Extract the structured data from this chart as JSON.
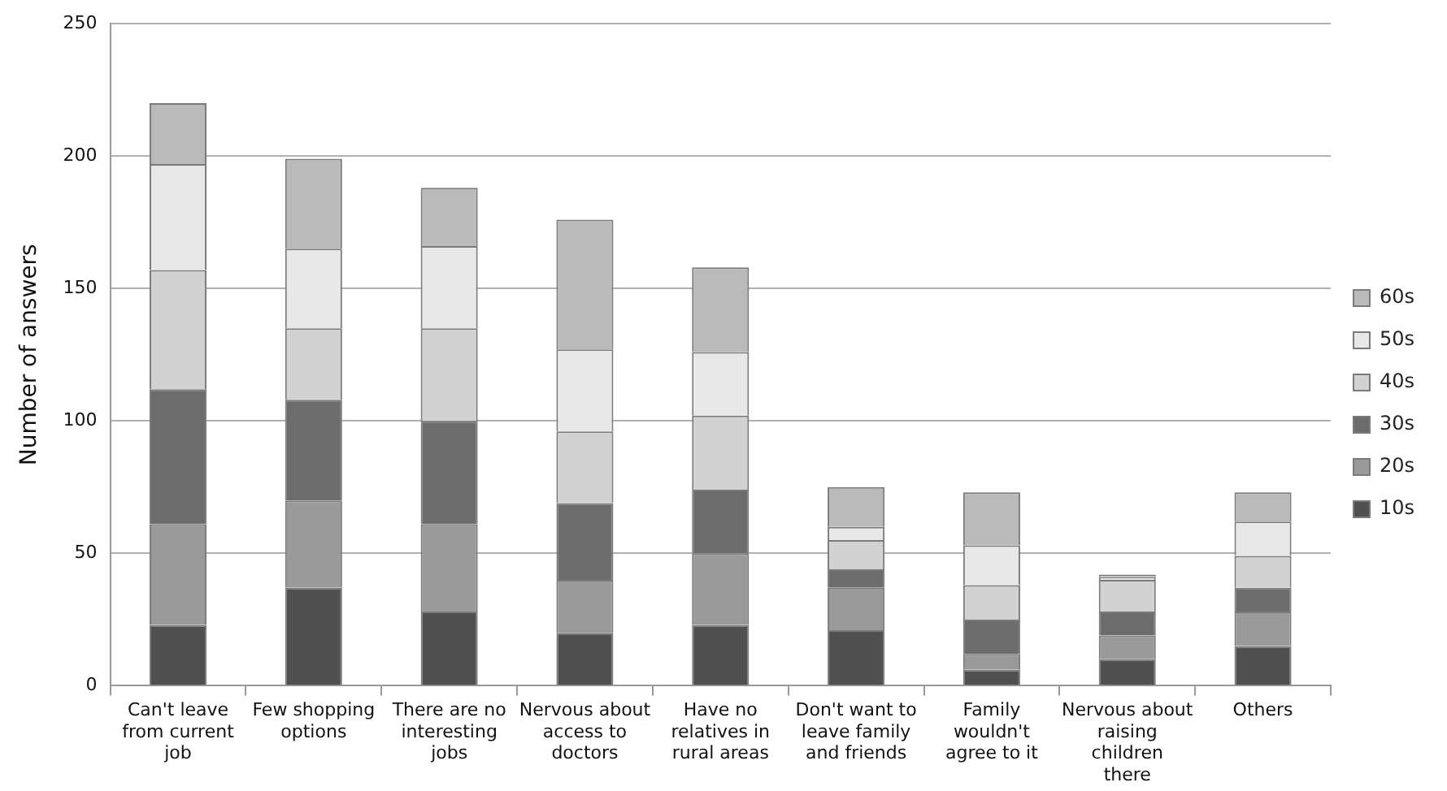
{
  "chart_data": {
    "type": "bar",
    "stacked": true,
    "ylabel": "Number of answers",
    "categories": [
      "Can't leave from current job",
      "Few shopping options",
      "There are no interesting jobs",
      "Nervous about access to doctors",
      "Have no relatives in rural areas",
      "Don't want to leave family and friends",
      "Family wouldn't agree to it",
      "Nervous about raising children there",
      "Others"
    ],
    "series": [
      {
        "name": "10s",
        "color": "#505050",
        "values": [
          23,
          37,
          28,
          20,
          23,
          21,
          6,
          10,
          15
        ]
      },
      {
        "name": "20s",
        "color": "#9a9a9a",
        "values": [
          38,
          33,
          33,
          20,
          27,
          16,
          6,
          9,
          13
        ]
      },
      {
        "name": "30s",
        "color": "#6c6c6c",
        "values": [
          51,
          38,
          39,
          29,
          24,
          7,
          13,
          9,
          9
        ]
      },
      {
        "name": "40s",
        "color": "#d2d2d2",
        "values": [
          45,
          27,
          35,
          27,
          28,
          11,
          13,
          12,
          12
        ]
      },
      {
        "name": "50s",
        "color": "#e8e8e8",
        "values": [
          40,
          30,
          31,
          31,
          24,
          5,
          15,
          1,
          13
        ]
      },
      {
        "name": "60s",
        "color": "#bababa",
        "values": [
          23,
          34,
          22,
          49,
          32,
          15,
          20,
          1,
          11
        ]
      }
    ],
    "ylim": [
      0,
      250
    ],
    "yticks": [
      0,
      50,
      100,
      150,
      200,
      250
    ],
    "grid": "y",
    "legend": "right"
  }
}
